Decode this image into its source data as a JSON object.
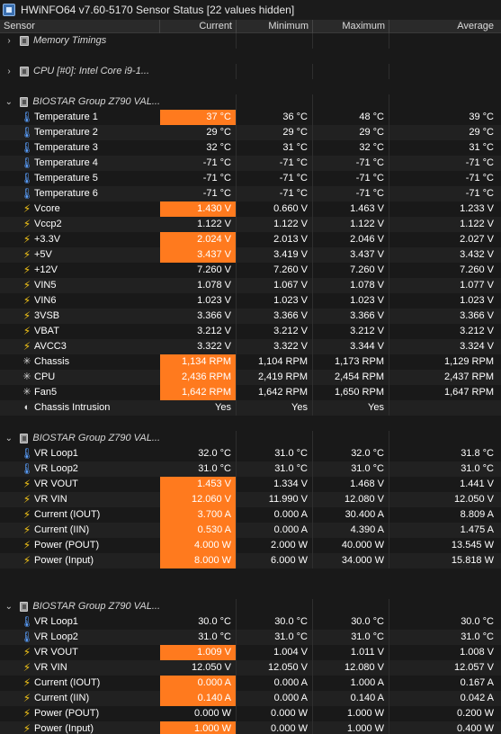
{
  "window": {
    "title": "HWiNFO64 v7.60-5170 Sensor Status [22 values hidden]"
  },
  "columns": {
    "sensor": "Sensor",
    "current": "Current",
    "minimum": "Minimum",
    "maximum": "Maximum",
    "average": "Average"
  },
  "colors": {
    "highlight": "#ff7a1e",
    "background": "#191919",
    "zebra": "#212121"
  },
  "rows": [
    {
      "type": "group",
      "expander": "›",
      "label": "Memory Timings"
    },
    {
      "type": "spacer"
    },
    {
      "type": "group",
      "expander": "›",
      "label": "CPU [#0]: Intel Core i9-1..."
    },
    {
      "type": "spacer"
    },
    {
      "type": "group",
      "expander": "⌄",
      "label": "BIOSTAR Group Z790 VAL..."
    },
    {
      "type": "sensor",
      "icon": "thermometer-icon",
      "label": "Temperature 1",
      "cur": "37 °C",
      "min": "36 °C",
      "max": "48 °C",
      "avg": "39 °C",
      "hl": true
    },
    {
      "type": "sensor",
      "icon": "thermometer-icon",
      "label": "Temperature 2",
      "cur": "29 °C",
      "min": "29 °C",
      "max": "29 °C",
      "avg": "29 °C",
      "hl": false
    },
    {
      "type": "sensor",
      "icon": "thermometer-icon",
      "label": "Temperature 3",
      "cur": "32 °C",
      "min": "31 °C",
      "max": "32 °C",
      "avg": "31 °C",
      "hl": false
    },
    {
      "type": "sensor",
      "icon": "thermometer-icon",
      "label": "Temperature 4",
      "cur": "-71 °C",
      "min": "-71 °C",
      "max": "-71 °C",
      "avg": "-71 °C",
      "hl": false
    },
    {
      "type": "sensor",
      "icon": "thermometer-icon",
      "label": "Temperature 5",
      "cur": "-71 °C",
      "min": "-71 °C",
      "max": "-71 °C",
      "avg": "-71 °C",
      "hl": false
    },
    {
      "type": "sensor",
      "icon": "thermometer-icon",
      "label": "Temperature 6",
      "cur": "-71 °C",
      "min": "-71 °C",
      "max": "-71 °C",
      "avg": "-71 °C",
      "hl": false
    },
    {
      "type": "sensor",
      "icon": "bolt-icon",
      "label": "Vcore",
      "cur": "1.430 V",
      "min": "0.660 V",
      "max": "1.463 V",
      "avg": "1.233 V",
      "hl": true
    },
    {
      "type": "sensor",
      "icon": "bolt-icon",
      "label": "Vccp2",
      "cur": "1.122 V",
      "min": "1.122 V",
      "max": "1.122 V",
      "avg": "1.122 V",
      "hl": false
    },
    {
      "type": "sensor",
      "icon": "bolt-icon",
      "label": "+3.3V",
      "cur": "2.024 V",
      "min": "2.013 V",
      "max": "2.046 V",
      "avg": "2.027 V",
      "hl": true
    },
    {
      "type": "sensor",
      "icon": "bolt-icon",
      "label": "+5V",
      "cur": "3.437 V",
      "min": "3.419 V",
      "max": "3.437 V",
      "avg": "3.432 V",
      "hl": true
    },
    {
      "type": "sensor",
      "icon": "bolt-icon",
      "label": "+12V",
      "cur": "7.260 V",
      "min": "7.260 V",
      "max": "7.260 V",
      "avg": "7.260 V",
      "hl": false
    },
    {
      "type": "sensor",
      "icon": "bolt-icon",
      "label": "VIN5",
      "cur": "1.078 V",
      "min": "1.067 V",
      "max": "1.078 V",
      "avg": "1.077 V",
      "hl": false
    },
    {
      "type": "sensor",
      "icon": "bolt-icon",
      "label": "VIN6",
      "cur": "1.023 V",
      "min": "1.023 V",
      "max": "1.023 V",
      "avg": "1.023 V",
      "hl": false
    },
    {
      "type": "sensor",
      "icon": "bolt-icon",
      "label": "3VSB",
      "cur": "3.366 V",
      "min": "3.366 V",
      "max": "3.366 V",
      "avg": "3.366 V",
      "hl": false
    },
    {
      "type": "sensor",
      "icon": "bolt-icon",
      "label": "VBAT",
      "cur": "3.212 V",
      "min": "3.212 V",
      "max": "3.212 V",
      "avg": "3.212 V",
      "hl": false
    },
    {
      "type": "sensor",
      "icon": "bolt-icon",
      "label": "AVCC3",
      "cur": "3.322 V",
      "min": "3.322 V",
      "max": "3.344 V",
      "avg": "3.324 V",
      "hl": false
    },
    {
      "type": "sensor",
      "icon": "fan-icon",
      "label": "Chassis",
      "cur": "1,134 RPM",
      "min": "1,104 RPM",
      "max": "1,173 RPM",
      "avg": "1,129 RPM",
      "hl": true
    },
    {
      "type": "sensor",
      "icon": "fan-icon",
      "label": "CPU",
      "cur": "2,436 RPM",
      "min": "2,419 RPM",
      "max": "2,454 RPM",
      "avg": "2,437 RPM",
      "hl": true
    },
    {
      "type": "sensor",
      "icon": "fan-icon",
      "label": "Fan5",
      "cur": "1,642 RPM",
      "min": "1,642 RPM",
      "max": "1,650 RPM",
      "avg": "1,647 RPM",
      "hl": true
    },
    {
      "type": "sensor",
      "icon": "intrusion-icon",
      "label": "Chassis Intrusion",
      "cur": "Yes",
      "min": "Yes",
      "max": "Yes",
      "avg": "",
      "hl": false
    },
    {
      "type": "spacer"
    },
    {
      "type": "group",
      "expander": "⌄",
      "label": "BIOSTAR Group Z790 VAL..."
    },
    {
      "type": "sensor",
      "icon": "thermometer-icon",
      "label": "VR Loop1",
      "cur": "32.0 °C",
      "min": "31.0 °C",
      "max": "32.0 °C",
      "avg": "31.8 °C",
      "hl": false
    },
    {
      "type": "sensor",
      "icon": "thermometer-icon",
      "label": "VR Loop2",
      "cur": "31.0 °C",
      "min": "31.0 °C",
      "max": "31.0 °C",
      "avg": "31.0 °C",
      "hl": false
    },
    {
      "type": "sensor",
      "icon": "bolt-icon",
      "label": "VR VOUT",
      "cur": "1.453 V",
      "min": "1.334 V",
      "max": "1.468 V",
      "avg": "1.441 V",
      "hl": true
    },
    {
      "type": "sensor",
      "icon": "bolt-icon",
      "label": "VR VIN",
      "cur": "12.060 V",
      "min": "11.990 V",
      "max": "12.080 V",
      "avg": "12.050 V",
      "hl": true
    },
    {
      "type": "sensor",
      "icon": "bolt-icon",
      "label": "Current (IOUT)",
      "cur": "3.700 A",
      "min": "0.000 A",
      "max": "30.400 A",
      "avg": "8.809 A",
      "hl": true
    },
    {
      "type": "sensor",
      "icon": "bolt-icon",
      "label": "Current (IIN)",
      "cur": "0.530 A",
      "min": "0.000 A",
      "max": "4.390 A",
      "avg": "1.475 A",
      "hl": true
    },
    {
      "type": "sensor",
      "icon": "bolt-icon",
      "label": "Power (POUT)",
      "cur": "4.000 W",
      "min": "2.000 W",
      "max": "40.000 W",
      "avg": "13.545 W",
      "hl": true
    },
    {
      "type": "sensor",
      "icon": "bolt-icon",
      "label": "Power (Input)",
      "cur": "8.000 W",
      "min": "6.000 W",
      "max": "34.000 W",
      "avg": "15.818 W",
      "hl": true
    },
    {
      "type": "spacer"
    },
    {
      "type": "spacer"
    },
    {
      "type": "group",
      "expander": "⌄",
      "label": "BIOSTAR Group Z790 VAL..."
    },
    {
      "type": "sensor",
      "icon": "thermometer-icon",
      "label": "VR Loop1",
      "cur": "30.0 °C",
      "min": "30.0 °C",
      "max": "30.0 °C",
      "avg": "30.0 °C",
      "hl": false
    },
    {
      "type": "sensor",
      "icon": "thermometer-icon",
      "label": "VR Loop2",
      "cur": "31.0 °C",
      "min": "31.0 °C",
      "max": "31.0 °C",
      "avg": "31.0 °C",
      "hl": false
    },
    {
      "type": "sensor",
      "icon": "bolt-icon",
      "label": "VR VOUT",
      "cur": "1.009 V",
      "min": "1.004 V",
      "max": "1.011 V",
      "avg": "1.008 V",
      "hl": true
    },
    {
      "type": "sensor",
      "icon": "bolt-icon",
      "label": "VR VIN",
      "cur": "12.050 V",
      "min": "12.050 V",
      "max": "12.080 V",
      "avg": "12.057 V",
      "hl": false
    },
    {
      "type": "sensor",
      "icon": "bolt-icon",
      "label": "Current (IOUT)",
      "cur": "0.000 A",
      "min": "0.000 A",
      "max": "1.000 A",
      "avg": "0.167 A",
      "hl": true
    },
    {
      "type": "sensor",
      "icon": "bolt-icon",
      "label": "Current (IIN)",
      "cur": "0.140 A",
      "min": "0.000 A",
      "max": "0.140 A",
      "avg": "0.042 A",
      "hl": true
    },
    {
      "type": "sensor",
      "icon": "bolt-icon",
      "label": "Power (POUT)",
      "cur": "0.000 W",
      "min": "0.000 W",
      "max": "1.000 W",
      "avg": "0.200 W",
      "hl": false
    },
    {
      "type": "sensor",
      "icon": "bolt-icon",
      "label": "Power (Input)",
      "cur": "1.000 W",
      "min": "0.000 W",
      "max": "1.000 W",
      "avg": "0.400 W",
      "hl": true
    }
  ]
}
